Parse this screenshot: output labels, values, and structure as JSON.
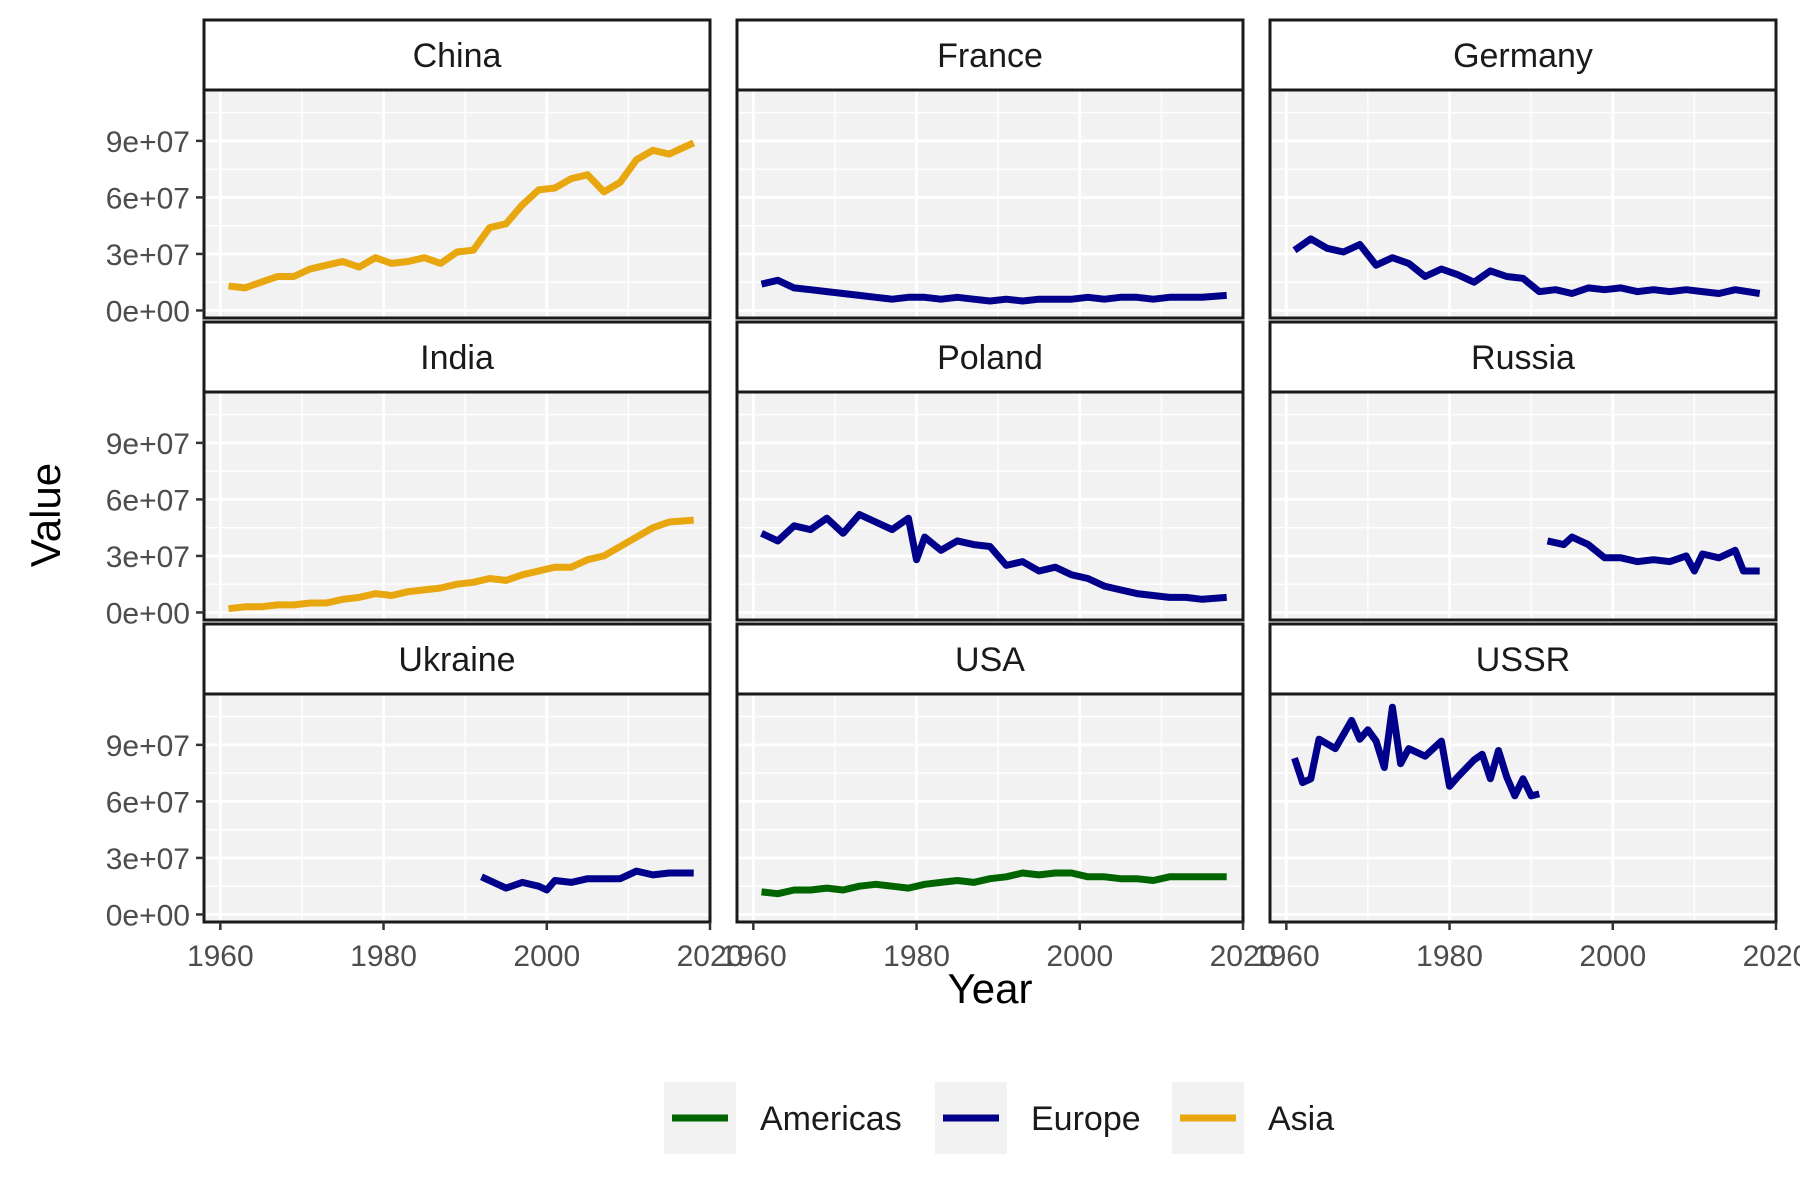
{
  "chart_data": {
    "type": "line",
    "layout": "facet_wrap 3x3",
    "xlabel": "Year",
    "ylabel": "Value",
    "xlim": [
      1958,
      2020
    ],
    "ylim": [
      -4000000,
      117000000
    ],
    "x_ticks": [
      1960,
      1980,
      2000,
      2020
    ],
    "x_tick_labels": [
      "1960",
      "1980",
      "2000",
      "2020"
    ],
    "y_ticks": [
      0,
      30000000,
      60000000,
      90000000
    ],
    "y_tick_labels": [
      "0e+00",
      "3e+07",
      "6e+07",
      "9e+07"
    ],
    "grid": true,
    "legend": {
      "position": "bottom",
      "entries": [
        {
          "name": "Americas",
          "color": "#006400"
        },
        {
          "name": "Europe",
          "color": "#00008B"
        },
        {
          "name": "Asia",
          "color": "#E8A70E"
        }
      ]
    },
    "panels": [
      {
        "name": "China",
        "region": "Asia",
        "x": [
          1961,
          1963,
          1965,
          1967,
          1969,
          1971,
          1973,
          1975,
          1977,
          1979,
          1981,
          1983,
          1985,
          1987,
          1989,
          1991,
          1993,
          1995,
          1997,
          1999,
          2001,
          2003,
          2005,
          2007,
          2009,
          2011,
          2013,
          2015,
          2018
        ],
        "y": [
          13000000,
          12000000,
          15000000,
          18000000,
          18000000,
          22000000,
          24000000,
          26000000,
          23000000,
          28000000,
          25000000,
          26000000,
          28000000,
          25000000,
          31000000,
          32000000,
          44000000,
          46000000,
          56000000,
          64000000,
          65000000,
          70000000,
          72000000,
          63000000,
          68000000,
          80000000,
          85000000,
          83000000,
          89000000
        ]
      },
      {
        "name": "France",
        "region": "Europe",
        "x": [
          1961,
          1963,
          1965,
          1967,
          1969,
          1971,
          1973,
          1975,
          1977,
          1979,
          1981,
          1983,
          1985,
          1987,
          1989,
          1991,
          1993,
          1995,
          1997,
          1999,
          2001,
          2003,
          2005,
          2007,
          2009,
          2011,
          2013,
          2015,
          2018
        ],
        "y": [
          14000000,
          16000000,
          12000000,
          11000000,
          10000000,
          9000000,
          8000000,
          7000000,
          6000000,
          7000000,
          7000000,
          6000000,
          7000000,
          6000000,
          5000000,
          6000000,
          5000000,
          6000000,
          6000000,
          6000000,
          7000000,
          6000000,
          7000000,
          7000000,
          6000000,
          7000000,
          7000000,
          7000000,
          8000000
        ]
      },
      {
        "name": "Germany",
        "region": "Europe",
        "x": [
          1961,
          1963,
          1965,
          1967,
          1969,
          1971,
          1973,
          1975,
          1977,
          1979,
          1981,
          1983,
          1985,
          1987,
          1989,
          1991,
          1993,
          1995,
          1997,
          1999,
          2001,
          2003,
          2005,
          2007,
          2009,
          2011,
          2013,
          2015,
          2018
        ],
        "y": [
          32000000,
          38000000,
          33000000,
          31000000,
          35000000,
          24000000,
          28000000,
          25000000,
          18000000,
          22000000,
          19000000,
          15000000,
          21000000,
          18000000,
          17000000,
          10000000,
          11000000,
          9000000,
          12000000,
          11000000,
          12000000,
          10000000,
          11000000,
          10000000,
          11000000,
          10000000,
          9000000,
          11000000,
          9000000
        ]
      },
      {
        "name": "India",
        "region": "Asia",
        "x": [
          1961,
          1963,
          1965,
          1967,
          1969,
          1971,
          1973,
          1975,
          1977,
          1979,
          1981,
          1983,
          1985,
          1987,
          1989,
          1991,
          1993,
          1995,
          1997,
          1999,
          2001,
          2003,
          2005,
          2007,
          2009,
          2011,
          2013,
          2015,
          2018
        ],
        "y": [
          2000000,
          3000000,
          3000000,
          4000000,
          4000000,
          5000000,
          5000000,
          7000000,
          8000000,
          10000000,
          9000000,
          11000000,
          12000000,
          13000000,
          15000000,
          16000000,
          18000000,
          17000000,
          20000000,
          22000000,
          24000000,
          24000000,
          28000000,
          30000000,
          35000000,
          40000000,
          45000000,
          48000000,
          49000000
        ]
      },
      {
        "name": "Poland",
        "region": "Europe",
        "x": [
          1961,
          1963,
          1965,
          1967,
          1969,
          1971,
          1973,
          1975,
          1977,
          1979,
          1980,
          1981,
          1983,
          1985,
          1987,
          1989,
          1991,
          1993,
          1995,
          1997,
          1999,
          2001,
          2003,
          2005,
          2007,
          2009,
          2011,
          2013,
          2015,
          2018
        ],
        "y": [
          42000000,
          38000000,
          46000000,
          44000000,
          50000000,
          42000000,
          52000000,
          48000000,
          44000000,
          50000000,
          28000000,
          40000000,
          33000000,
          38000000,
          36000000,
          35000000,
          25000000,
          27000000,
          22000000,
          24000000,
          20000000,
          18000000,
          14000000,
          12000000,
          10000000,
          9000000,
          8000000,
          8000000,
          7000000,
          8000000
        ]
      },
      {
        "name": "Russia",
        "region": "Europe",
        "x": [
          1992,
          1994,
          1995,
          1997,
          1999,
          2001,
          2003,
          2005,
          2007,
          2009,
          2010,
          2011,
          2013,
          2015,
          2016,
          2018
        ],
        "y": [
          38000000,
          36000000,
          40000000,
          36000000,
          29000000,
          29000000,
          27000000,
          28000000,
          27000000,
          30000000,
          22000000,
          31000000,
          29000000,
          33000000,
          22000000,
          22000000
        ]
      },
      {
        "name": "Ukraine",
        "region": "Europe",
        "x": [
          1992,
          1994,
          1995,
          1997,
          1999,
          2000,
          2001,
          2003,
          2005,
          2007,
          2009,
          2011,
          2013,
          2015,
          2018
        ],
        "y": [
          20000000,
          16000000,
          14000000,
          17000000,
          15000000,
          13000000,
          18000000,
          17000000,
          19000000,
          19000000,
          19000000,
          23000000,
          21000000,
          22000000,
          22000000
        ]
      },
      {
        "name": "USA",
        "region": "Americas",
        "x": [
          1961,
          1963,
          1965,
          1967,
          1969,
          1971,
          1973,
          1975,
          1977,
          1979,
          1981,
          1983,
          1985,
          1987,
          1989,
          1991,
          1993,
          1995,
          1997,
          1999,
          2001,
          2003,
          2005,
          2007,
          2009,
          2011,
          2013,
          2015,
          2018
        ],
        "y": [
          12000000,
          11000000,
          13000000,
          13000000,
          14000000,
          13000000,
          15000000,
          16000000,
          15000000,
          14000000,
          16000000,
          17000000,
          18000000,
          17000000,
          19000000,
          20000000,
          22000000,
          21000000,
          22000000,
          22000000,
          20000000,
          20000000,
          19000000,
          19000000,
          18000000,
          20000000,
          20000000,
          20000000,
          20000000
        ]
      },
      {
        "name": "USSR",
        "region": "Europe",
        "x": [
          1961,
          1962,
          1963,
          1964,
          1966,
          1968,
          1969,
          1970,
          1971,
          1972,
          1973,
          1974,
          1975,
          1977,
          1979,
          1980,
          1981,
          1983,
          1984,
          1985,
          1986,
          1987,
          1988,
          1989,
          1990,
          1991
        ],
        "y": [
          83000000,
          70000000,
          72000000,
          93000000,
          88000000,
          103000000,
          93000000,
          98000000,
          92000000,
          78000000,
          110000000,
          80000000,
          88000000,
          84000000,
          92000000,
          68000000,
          73000000,
          82000000,
          85000000,
          72000000,
          87000000,
          73000000,
          63000000,
          72000000,
          63000000,
          64000000
        ]
      }
    ]
  }
}
